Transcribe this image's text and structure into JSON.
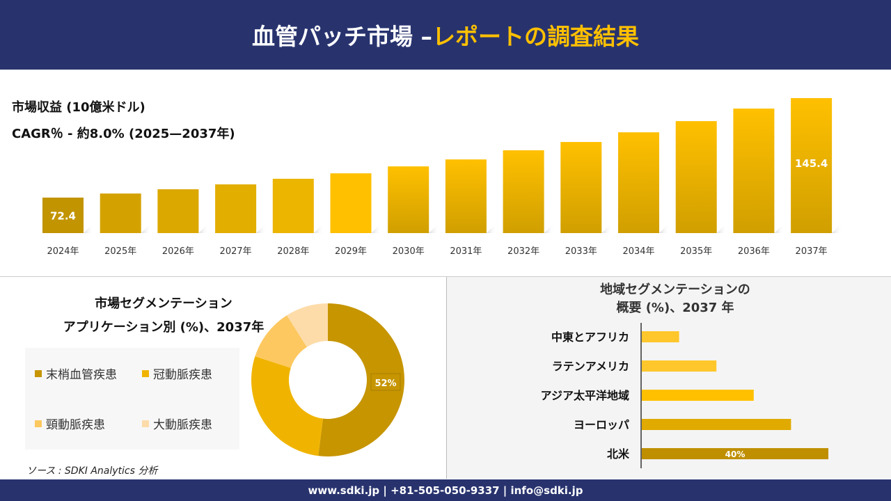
{
  "header": {
    "title_white": "血管パッチ市場 –",
    "title_yellow": "レポートの調査結果"
  },
  "chart_data": [
    {
      "type": "bar",
      "title": "市場収益 (10億米ドル)",
      "subtitle": "CAGR％ - 約8.0% (2025—2037年)",
      "categories": [
        "2024年",
        "2025年",
        "2026年",
        "2027年",
        "2028年",
        "2029年",
        "2030年",
        "2031年",
        "2032年",
        "2033年",
        "2034年",
        "2035年",
        "2036年",
        "2037年"
      ],
      "values": [
        72.4,
        75.4,
        78.5,
        82.1,
        86.2,
        90.2,
        95.3,
        100.4,
        107.1,
        113.2,
        120.3,
        128.5,
        137.7,
        145.4
      ],
      "data_labels": {
        "0": "72.4",
        "13": "145.4"
      },
      "colors": [
        "#c29400",
        "#d4a200",
        "#dba800",
        "#e2ae00",
        "#ecb500",
        "#ffc000"
      ],
      "grid": false
    },
    {
      "type": "pie",
      "title": "市場セグメンテーション",
      "subtitle": "アプリケーション別 (%)、2037年",
      "categories": [
        "末梢血管疾患",
        "冠動脈疾患",
        "頸動脈疾患",
        "大動脈疾患"
      ],
      "values": [
        52,
        28,
        11,
        9
      ],
      "data_labels": {
        "0": "52%"
      },
      "colors": [
        "#c69500",
        "#f0b400",
        "#fdc860",
        "#fddcaa"
      ],
      "legend": "left"
    },
    {
      "type": "bar",
      "orientation": "horizontal",
      "title": "地域セグメンテーションの",
      "subtitle": "概要 (%)、2037 年",
      "categories": [
        "中東とアフリカ",
        "ラテンアメリカ",
        "アジア太平洋地域",
        "ヨーロッパ",
        "北米"
      ],
      "values": [
        8,
        16,
        24,
        32,
        40
      ],
      "data_labels": {
        "4": "40%"
      },
      "colors": [
        "#ffc72c",
        "#ffc72c",
        "#ffc000",
        "#e0aa00",
        "#bf8f00"
      ]
    }
  ],
  "source": "ソース : SDKI Analytics 分析",
  "footer": "www.sdki.jp | +81-505-050-9337 | info@sdki.jp"
}
